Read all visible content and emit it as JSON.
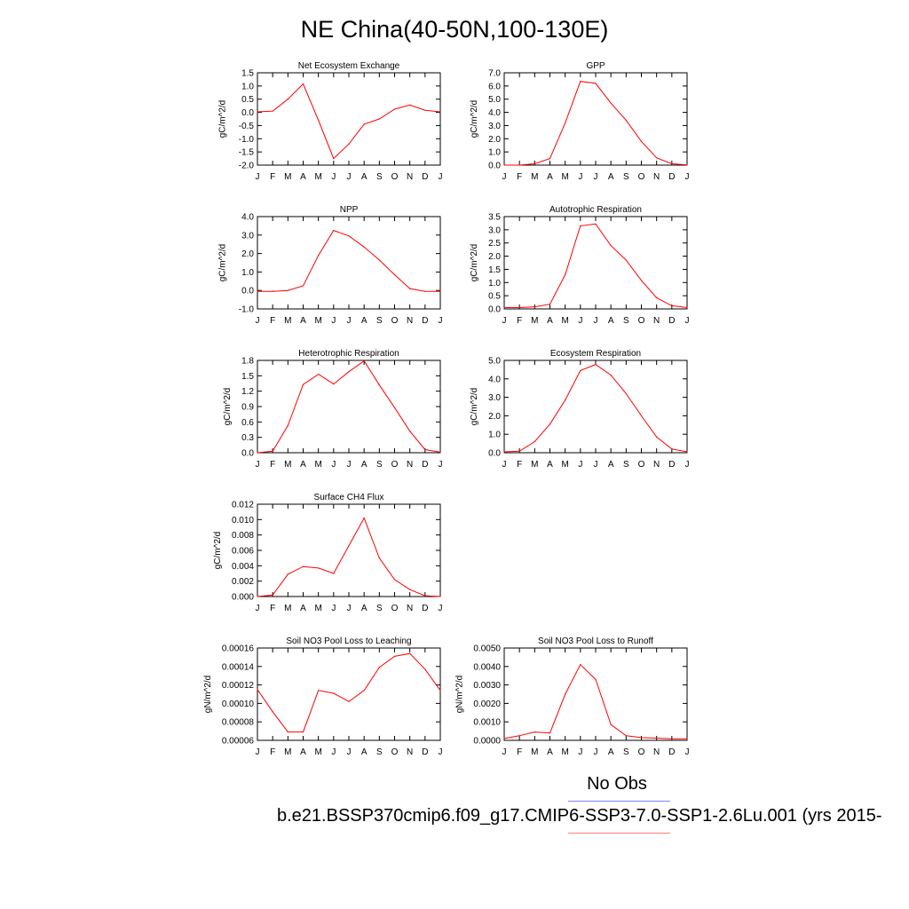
{
  "main_title": "NE China(40-50N,100-130E)",
  "legend": {
    "entries": [
      {
        "label": "No Obs",
        "color": "#7f7fff"
      },
      {
        "label": "b.e21.BSSP370cmip6.f09_g17.CMIP6-SSP3-7.0-SSP1-2.6Lu.001 (yrs 2015-",
        "color": "#ff7f7f"
      }
    ]
  },
  "colors": {
    "series": "#ff0000",
    "axis": "#000000"
  },
  "chart_data": [
    {
      "type": "line",
      "title": "Net Ecosystem Exchange",
      "ylabel": "gC/m^2/d",
      "categories": [
        "J",
        "F",
        "M",
        "A",
        "M",
        "J",
        "J",
        "A",
        "S",
        "O",
        "N",
        "D",
        "J"
      ],
      "ylim": [
        -2.0,
        1.5
      ],
      "yticks": [
        {
          "v": 1.5,
          "label": "1.5"
        },
        {
          "v": 1.0,
          "label": "1.0"
        },
        {
          "v": 0.5,
          "label": "0.5"
        },
        {
          "v": 0.0,
          "label": "0.0"
        },
        {
          "v": -0.5,
          "label": "-0.5"
        },
        {
          "v": -1.0,
          "label": "-1.0"
        },
        {
          "v": -1.5,
          "label": "-1.5"
        },
        {
          "v": -2.0,
          "label": "-2.0"
        }
      ],
      "values": [
        0.02,
        0.05,
        0.5,
        1.08,
        -0.3,
        -1.75,
        -1.2,
        -0.45,
        -0.25,
        0.12,
        0.28,
        0.08,
        0.02
      ]
    },
    {
      "type": "line",
      "title": "GPP",
      "ylabel": "gC/m^2/d",
      "categories": [
        "J",
        "F",
        "M",
        "A",
        "M",
        "J",
        "J",
        "A",
        "S",
        "O",
        "N",
        "D",
        "J"
      ],
      "ylim": [
        0.0,
        7.0
      ],
      "yticks": [
        {
          "v": 7.0,
          "label": "7.0"
        },
        {
          "v": 6.0,
          "label": "6.0"
        },
        {
          "v": 5.0,
          "label": "5.0"
        },
        {
          "v": 4.0,
          "label": "4.0"
        },
        {
          "v": 3.0,
          "label": "3.0"
        },
        {
          "v": 2.0,
          "label": "2.0"
        },
        {
          "v": 1.0,
          "label": "1.0"
        },
        {
          "v": 0.0,
          "label": "0.0"
        }
      ],
      "values": [
        0.0,
        0.0,
        0.1,
        0.5,
        3.2,
        6.35,
        6.2,
        4.7,
        3.4,
        1.8,
        0.55,
        0.1,
        0.02
      ]
    },
    {
      "type": "line",
      "title": "NPP",
      "ylabel": "gC/m^2/d",
      "categories": [
        "J",
        "F",
        "M",
        "A",
        "M",
        "J",
        "J",
        "A",
        "S",
        "O",
        "N",
        "D",
        "J"
      ],
      "ylim": [
        -1.0,
        4.0
      ],
      "yticks": [
        {
          "v": 4.0,
          "label": "4.0"
        },
        {
          "v": 3.0,
          "label": "3.0"
        },
        {
          "v": 2.0,
          "label": "2.0"
        },
        {
          "v": 1.0,
          "label": "1.0"
        },
        {
          "v": 0.0,
          "label": "0.0"
        },
        {
          "v": -1.0,
          "label": "-1.0"
        }
      ],
      "values": [
        -0.05,
        -0.05,
        0.0,
        0.25,
        1.9,
        3.25,
        2.95,
        2.35,
        1.65,
        0.85,
        0.1,
        -0.05,
        -0.05
      ]
    },
    {
      "type": "line",
      "title": "Autotrophic Respiration",
      "ylabel": "gC/m^2/d",
      "categories": [
        "J",
        "F",
        "M",
        "A",
        "M",
        "J",
        "J",
        "A",
        "S",
        "O",
        "N",
        "D",
        "J"
      ],
      "ylim": [
        0.0,
        3.5
      ],
      "yticks": [
        {
          "v": 3.5,
          "label": "3.5"
        },
        {
          "v": 3.0,
          "label": "3.0"
        },
        {
          "v": 2.5,
          "label": "2.5"
        },
        {
          "v": 2.0,
          "label": "2.0"
        },
        {
          "v": 1.5,
          "label": "1.5"
        },
        {
          "v": 1.0,
          "label": "1.0"
        },
        {
          "v": 0.5,
          "label": "0.5"
        },
        {
          "v": 0.0,
          "label": "0.0"
        }
      ],
      "values": [
        0.05,
        0.05,
        0.08,
        0.18,
        1.3,
        3.15,
        3.22,
        2.4,
        1.85,
        1.08,
        0.42,
        0.12,
        0.05
      ]
    },
    {
      "type": "line",
      "title": "Heterotrophic Respiration",
      "ylabel": "gC/m^2/d",
      "categories": [
        "J",
        "F",
        "M",
        "A",
        "M",
        "J",
        "J",
        "A",
        "S",
        "O",
        "N",
        "D",
        "J"
      ],
      "ylim": [
        0.0,
        1.8
      ],
      "yticks": [
        {
          "v": 1.8,
          "label": "1.8"
        },
        {
          "v": 1.5,
          "label": "1.5"
        },
        {
          "v": 1.2,
          "label": "1.2"
        },
        {
          "v": 0.9,
          "label": "0.9"
        },
        {
          "v": 0.6,
          "label": "0.6"
        },
        {
          "v": 0.3,
          "label": "0.3"
        },
        {
          "v": 0.0,
          "label": "0.0"
        }
      ],
      "values": [
        0.0,
        0.03,
        0.53,
        1.33,
        1.53,
        1.34,
        1.58,
        1.79,
        1.32,
        0.88,
        0.42,
        0.06,
        0.01
      ]
    },
    {
      "type": "line",
      "title": "Ecosystem Respiration",
      "ylabel": "gC/m^2/d",
      "categories": [
        "J",
        "F",
        "M",
        "A",
        "M",
        "J",
        "J",
        "A",
        "S",
        "O",
        "N",
        "D",
        "J"
      ],
      "ylim": [
        0.0,
        5.0
      ],
      "yticks": [
        {
          "v": 5.0,
          "label": "5.0"
        },
        {
          "v": 4.0,
          "label": "4.0"
        },
        {
          "v": 3.0,
          "label": "3.0"
        },
        {
          "v": 2.0,
          "label": "2.0"
        },
        {
          "v": 1.0,
          "label": "1.0"
        },
        {
          "v": 0.0,
          "label": "0.0"
        }
      ],
      "values": [
        0.05,
        0.08,
        0.6,
        1.55,
        2.85,
        4.45,
        4.78,
        4.2,
        3.2,
        2.0,
        0.85,
        0.2,
        0.05
      ]
    },
    {
      "type": "line",
      "title": "Surface CH4 Flux",
      "ylabel": "gC/m^2/d",
      "categories": [
        "J",
        "F",
        "M",
        "A",
        "M",
        "J",
        "J",
        "A",
        "S",
        "O",
        "N",
        "D",
        "J"
      ],
      "ylim": [
        0.0,
        0.012
      ],
      "yticks": [
        {
          "v": 0.012,
          "label": "0.012"
        },
        {
          "v": 0.01,
          "label": "0.010"
        },
        {
          "v": 0.008,
          "label": "0.008"
        },
        {
          "v": 0.006,
          "label": "0.006"
        },
        {
          "v": 0.004,
          "label": "0.004"
        },
        {
          "v": 0.002,
          "label": "0.002"
        },
        {
          "v": 0.0,
          "label": "0.000"
        }
      ],
      "values": [
        0.0,
        0.0002,
        0.0029,
        0.0039,
        0.0037,
        0.003,
        0.0066,
        0.0102,
        0.005,
        0.0022,
        0.0009,
        0.0001,
        0.0
      ]
    },
    {
      "type": "line",
      "title": "Soil NO3 Pool Loss to Leaching",
      "ylabel": "gN/m^2/d",
      "categories": [
        "J",
        "F",
        "M",
        "A",
        "M",
        "J",
        "J",
        "A",
        "S",
        "O",
        "N",
        "D",
        "J"
      ],
      "ylim": [
        6e-05,
        0.00016
      ],
      "yticks": [
        {
          "v": 0.00016,
          "label": "0.00016"
        },
        {
          "v": 0.00014,
          "label": "0.00014"
        },
        {
          "v": 0.00012,
          "label": "0.00012"
        },
        {
          "v": 0.0001,
          "label": "0.00010"
        },
        {
          "v": 8e-05,
          "label": "0.00008"
        },
        {
          "v": 6e-05,
          "label": "0.00006"
        }
      ],
      "values": [
        0.000115,
        9.1e-05,
        6.9e-05,
        6.9e-05,
        0.000114,
        0.000111,
        0.000102,
        0.000114,
        0.000139,
        0.000151,
        0.000154,
        0.000137,
        0.000114
      ]
    },
    {
      "type": "line",
      "title": "Soil NO3 Pool Loss to Runoff",
      "ylabel": "gN/m^2/d",
      "categories": [
        "J",
        "F",
        "M",
        "A",
        "M",
        "J",
        "J",
        "A",
        "S",
        "O",
        "N",
        "D",
        "J"
      ],
      "ylim": [
        0.0,
        0.005
      ],
      "yticks": [
        {
          "v": 0.005,
          "label": "0.0050"
        },
        {
          "v": 0.004,
          "label": "0.0040"
        },
        {
          "v": 0.003,
          "label": "0.0030"
        },
        {
          "v": 0.002,
          "label": "0.0020"
        },
        {
          "v": 0.001,
          "label": "0.0010"
        },
        {
          "v": 0.0,
          "label": "0.0000"
        }
      ],
      "values": [
        0.0001,
        0.00025,
        0.00045,
        0.0004,
        0.0025,
        0.0041,
        0.0033,
        0.00085,
        0.00025,
        0.00015,
        0.00012,
        8e-05,
        8e-05
      ]
    }
  ]
}
